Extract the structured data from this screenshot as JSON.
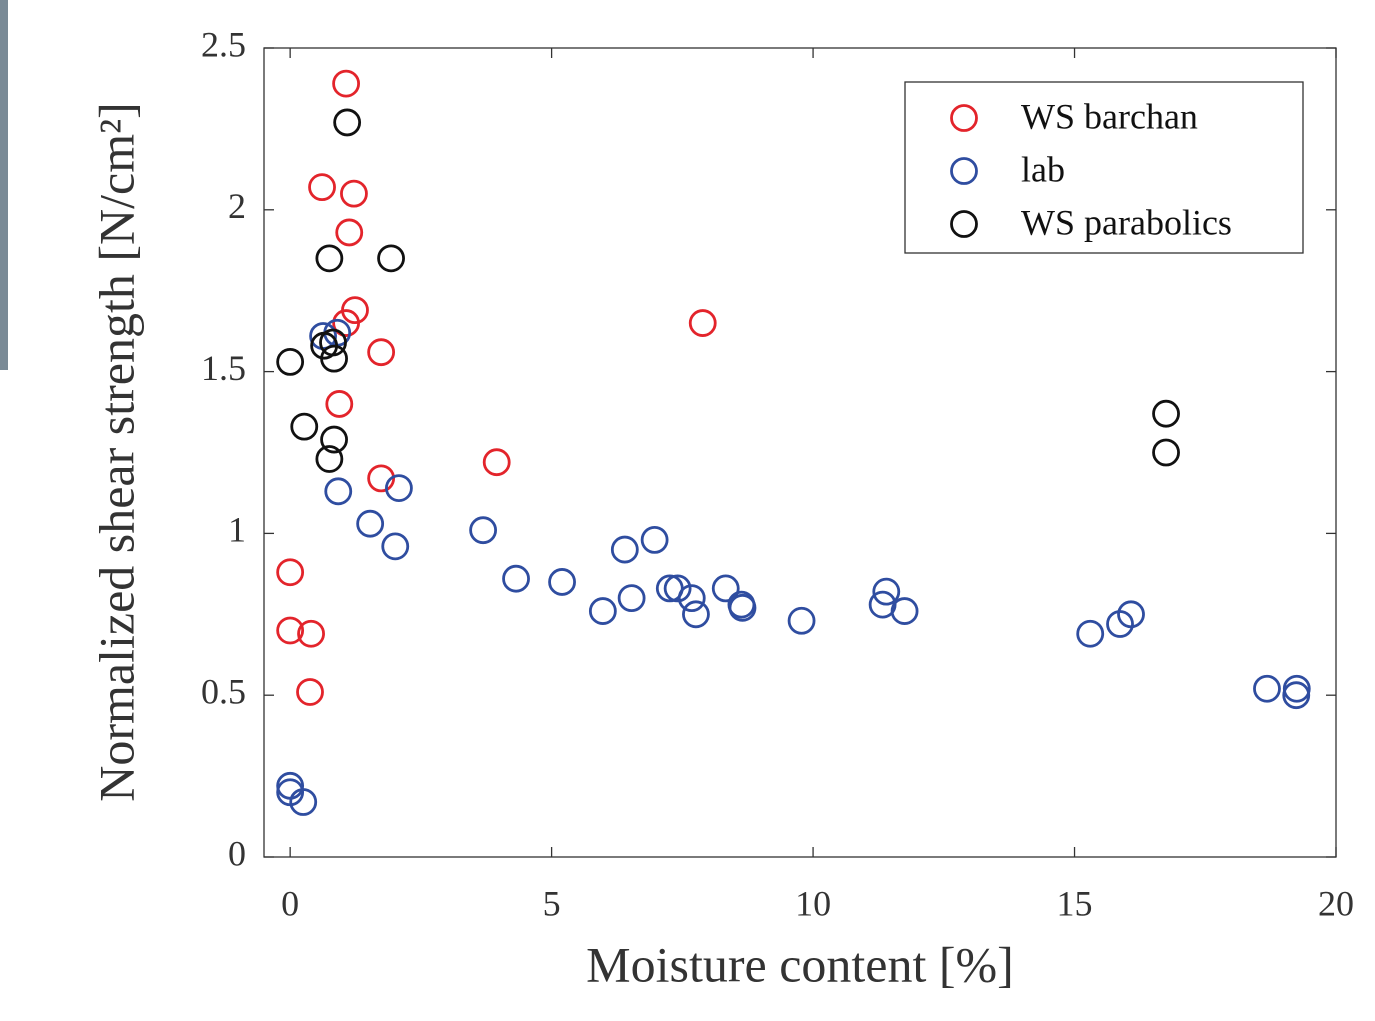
{
  "chart_data": {
    "type": "scatter",
    "x_label": "Moisture content [%]",
    "y_label": "Normalized shear strength [N/cm²]",
    "xlim": [
      -0.5,
      20
    ],
    "ylim": [
      0,
      2.5
    ],
    "xticks": [
      0,
      5,
      10,
      15,
      20
    ],
    "yticks": [
      0,
      0.5,
      1,
      1.5,
      2,
      2.5
    ],
    "legend_position": "upper right",
    "series": [
      {
        "name": "WS barchan",
        "color": "#e3242b",
        "x": [
          1.07,
          0.61,
          1.22,
          1.13,
          1.24,
          1.07,
          1.74,
          0.94,
          1.74,
          3.95,
          7.89,
          0,
          0,
          0.4,
          0.38
        ],
        "values": [
          2.39,
          2.07,
          2.05,
          1.93,
          1.69,
          1.65,
          1.56,
          1.4,
          1.17,
          1.22,
          1.65,
          0.88,
          0.7,
          0.69,
          0.51
        ]
      },
      {
        "name": "lab",
        "color": "#2f4da0",
        "x": [
          0.63,
          0.9,
          0.92,
          2.08,
          1.53,
          2.01,
          3.69,
          4.32,
          5.2,
          5.98,
          6.4,
          6.53,
          6.97,
          7.26,
          7.41,
          7.68,
          7.76,
          8.33,
          8.63,
          8.65,
          9.78,
          11.4,
          11.33,
          11.75,
          15.3,
          15.87,
          16.08,
          18.68,
          19.25,
          19.24,
          0,
          0,
          0.25
        ],
        "values": [
          1.61,
          1.62,
          1.13,
          1.14,
          1.03,
          0.96,
          1.01,
          0.86,
          0.85,
          0.76,
          0.95,
          0.8,
          0.98,
          0.83,
          0.83,
          0.8,
          0.75,
          0.83,
          0.78,
          0.77,
          0.73,
          0.82,
          0.78,
          0.76,
          0.69,
          0.72,
          0.75,
          0.52,
          0.52,
          0.5,
          0.22,
          0.2,
          0.17
        ]
      },
      {
        "name": "WS parabolics",
        "color": "#111111",
        "x": [
          1.09,
          0.75,
          1.93,
          0,
          0.65,
          0.82,
          0.84,
          0.27,
          0.84,
          0.75,
          16.75,
          16.75
        ],
        "values": [
          2.27,
          1.85,
          1.85,
          1.53,
          1.58,
          1.59,
          1.54,
          1.33,
          1.29,
          1.23,
          1.37,
          1.25
        ]
      }
    ]
  }
}
